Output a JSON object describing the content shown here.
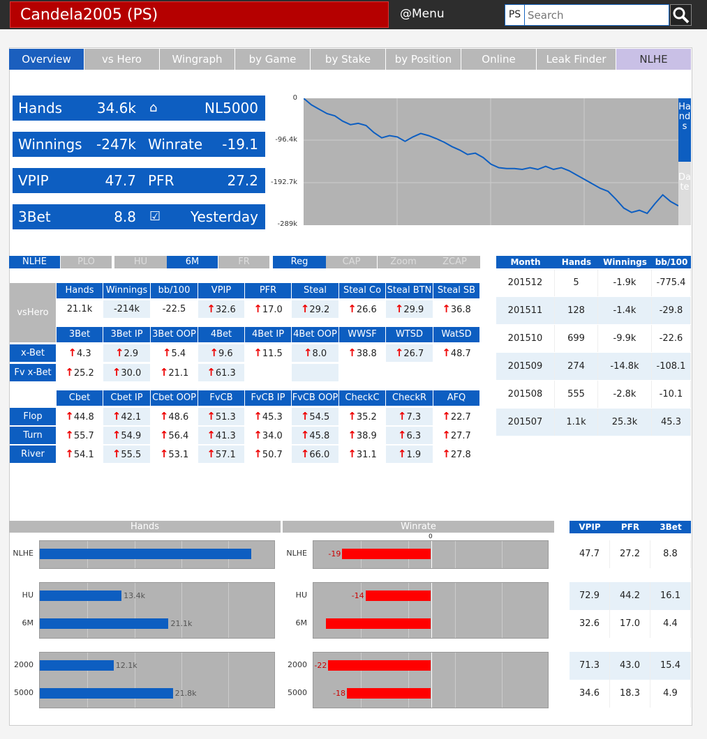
{
  "header": {
    "title": "Candela2005 (PS)",
    "menu": "@Menu",
    "site": "PS",
    "search_placeholder": "Search"
  },
  "tabs": [
    "Overview",
    "vs Hero",
    "Wingraph",
    "by Game",
    "by Stake",
    "by Position",
    "Online",
    "Leak Finder",
    "NLHE"
  ],
  "stats": [
    {
      "label": "Hands",
      "value": "34.6k"
    },
    {
      "label": "",
      "value": "NL5000",
      "icon": "home-icon"
    },
    {
      "label": "Winnings",
      "value": "-247k"
    },
    {
      "label": "Winrate",
      "value": "-19.1"
    },
    {
      "label": "VPIP",
      "value": "47.7"
    },
    {
      "label": "PFR",
      "value": "27.2"
    },
    {
      "label": "3Bet",
      "value": "8.8"
    },
    {
      "label": "",
      "value": "Yesterday",
      "icon": "calendar-check-icon"
    }
  ],
  "wingraph": {
    "yticks": [
      "0",
      "-96.4k",
      "-192.7k",
      "-289k"
    ],
    "side_hands": "Hands",
    "side_date": "Date",
    "chart_data": {
      "type": "line",
      "ylim": [
        -289,
        0
      ],
      "y": [
        0,
        -15,
        -25,
        -35,
        -40,
        -52,
        -60,
        -57,
        -62,
        -78,
        -90,
        -85,
        -88,
        -98,
        -88,
        -80,
        -85,
        -92,
        -100,
        -110,
        -118,
        -128,
        -125,
        -135,
        -150,
        -158,
        -160,
        -160,
        -162,
        -158,
        -162,
        -155,
        -162,
        -158,
        -165,
        -175,
        -185,
        -195,
        -205,
        -212,
        -230,
        -250,
        -260,
        -255,
        -262,
        -240,
        -220,
        -235,
        -245
      ]
    }
  },
  "filters": {
    "game": [
      "NLHE",
      "PLO"
    ],
    "table": [
      "HU",
      "6M",
      "FR"
    ],
    "type": [
      "Reg",
      "CAP",
      "Zoom",
      "ZCAP"
    ]
  },
  "vshero": {
    "label": "vsHero",
    "headers": [
      "Hands",
      "Winnings",
      "bb/100",
      "VPIP",
      "PFR",
      "Steal",
      "Steal Co",
      "Steal BTN",
      "Steal SB"
    ],
    "values": [
      "21.1k",
      "-214k",
      "-22.5",
      "32.6",
      "17.0",
      "29.2",
      "26.6",
      "29.9",
      "36.8"
    ]
  },
  "bet": {
    "headers": [
      "3Bet",
      "3Bet IP",
      "3Bet OOP",
      "4Bet",
      "4Bet IP",
      "4Bet OOP",
      "WWSF",
      "WTSD",
      "WatSD"
    ],
    "rows": [
      {
        "label": "x-Bet",
        "values": [
          "4.3",
          "2.9",
          "5.4",
          "9.6",
          "11.5",
          "8.0",
          "38.8",
          "26.7",
          "48.7"
        ]
      },
      {
        "label": "Fv x-Bet",
        "values": [
          "25.2",
          "30.0",
          "21.1",
          "61.3"
        ]
      }
    ]
  },
  "post": {
    "headers": [
      "Cbet",
      "Cbet IP",
      "Cbet OOP",
      "FvCB",
      "FvCB IP",
      "FvCB OOP",
      "CheckC",
      "CheckR",
      "AFQ"
    ],
    "rows": [
      {
        "label": "Flop",
        "values": [
          "44.8",
          "42.1",
          "48.6",
          "51.3",
          "45.3",
          "54.5",
          "35.2",
          "7.3",
          "22.7"
        ]
      },
      {
        "label": "Turn",
        "values": [
          "55.7",
          "54.9",
          "56.4",
          "41.3",
          "34.0",
          "45.8",
          "38.9",
          "6.3",
          "27.7"
        ]
      },
      {
        "label": "River",
        "values": [
          "54.1",
          "55.5",
          "53.1",
          "57.1",
          "50.7",
          "66.0",
          "31.1",
          "1.9",
          "27.8"
        ]
      }
    ]
  },
  "months": {
    "headers": [
      "Month",
      "Hands",
      "Winnings",
      "bb/100"
    ],
    "rows": [
      [
        "201512",
        "5",
        "-1.9k",
        "-775.4"
      ],
      [
        "201511",
        "128",
        "-1.4k",
        "-29.8"
      ],
      [
        "201510",
        "699",
        "-9.9k",
        "-22.6"
      ],
      [
        "201509",
        "274",
        "-14.8k",
        "-108.1"
      ],
      [
        "201508",
        "555",
        "-2.8k",
        "-10.1"
      ],
      [
        "201507",
        "1.1k",
        "25.3k",
        "45.3"
      ]
    ]
  },
  "bars": {
    "hands_title": "Hands",
    "winrate_title": "Winrate",
    "zero_label": "0",
    "hands_chart": {
      "type": "bar",
      "hmax": 35,
      "rows": [
        {
          "label": "NLHE",
          "value": 34.6,
          "text": ""
        },
        {
          "label": "HU",
          "value": 13.4,
          "text": "13.4k"
        },
        {
          "label": "6M",
          "value": 21.1,
          "text": "21.1k"
        },
        {
          "label": "2000",
          "value": 12.1,
          "text": "12.1k"
        },
        {
          "label": "5000",
          "value": 21.8,
          "text": "21.8k"
        }
      ]
    },
    "winrate_chart": {
      "type": "bar",
      "rows": [
        {
          "label": "NLHE",
          "value": -19,
          "text": "-19"
        },
        {
          "label": "HU",
          "value": -14,
          "text": "-14"
        },
        {
          "label": "6M",
          "value": -22.5,
          "text": ""
        },
        {
          "label": "2000",
          "value": -22,
          "text": "-22"
        },
        {
          "label": "5000",
          "value": -18,
          "text": "-18"
        }
      ]
    }
  },
  "side": {
    "headers": [
      "VPIP",
      "PFR",
      "3Bet"
    ],
    "rows": [
      [
        "47.7",
        "27.2",
        "8.8"
      ],
      [
        "72.9",
        "44.2",
        "16.1"
      ],
      [
        "32.6",
        "17.0",
        "4.4"
      ],
      [
        "71.3",
        "43.0",
        "15.4"
      ],
      [
        "34.6",
        "18.3",
        "4.9"
      ]
    ]
  }
}
